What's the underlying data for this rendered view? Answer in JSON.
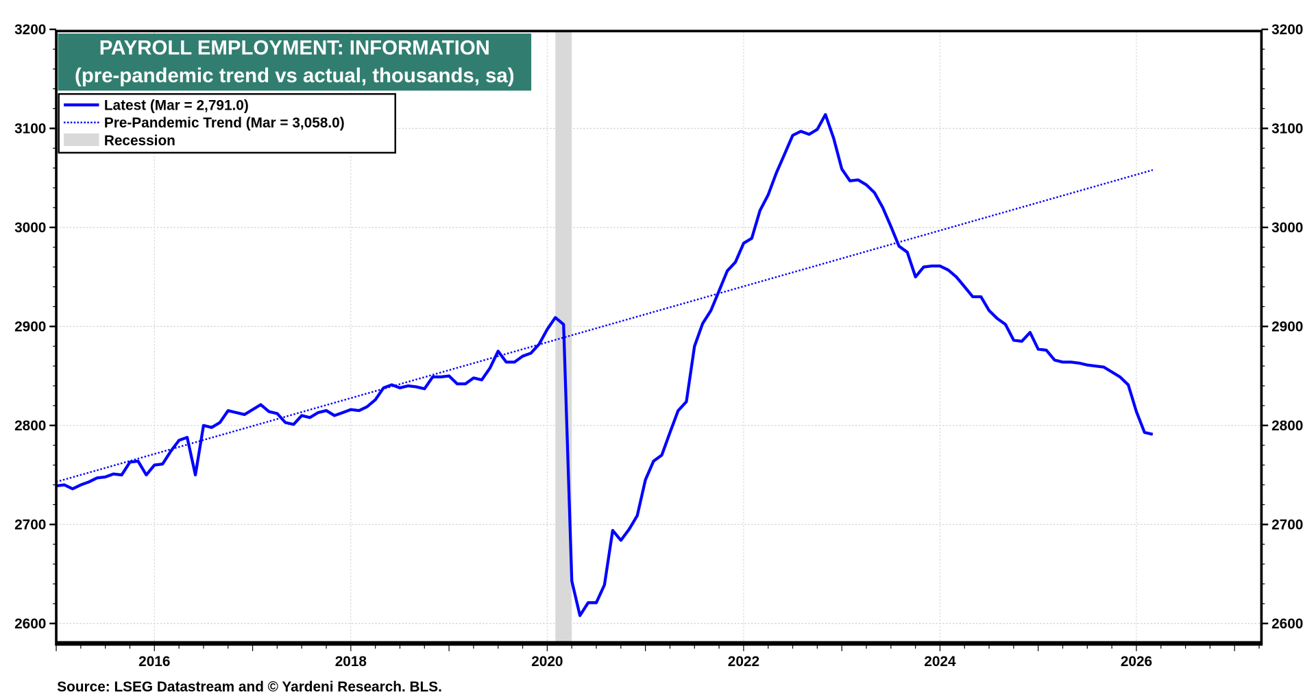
{
  "chart_data": {
    "type": "line",
    "title": "PAYROLL EMPLOYMENT: INFORMATION",
    "subtitle": "(pre-pandemic trend vs actual, thousands, sa)",
    "source": "Source: LSEG Datastream and © Yardeni Research. BLS.",
    "x_start": "2015-01",
    "x_frequency": "monthly",
    "xlim": [
      2015.0,
      2027.27
    ],
    "ylim": [
      2590,
      3200
    ],
    "y_ticks": [
      2600,
      2700,
      2800,
      2900,
      3000,
      3100,
      3200
    ],
    "x_tick_labels": [
      "2016",
      "2018",
      "2020",
      "2022",
      "2024",
      "2026"
    ],
    "grid": true,
    "y_axis_both_sides": true,
    "legend_placement": "top-left",
    "colors": {
      "title_bg": "#317E70",
      "series": "#0000FF",
      "recession": "#D9D9D9"
    },
    "legend": [
      {
        "label": "Latest (Mar = 2,791.0)",
        "style": "solid"
      },
      {
        "label": "Pre-Pandemic Trend (Mar = 3,058.0)",
        "style": "dotted"
      },
      {
        "label": "Recession",
        "style": "shade"
      }
    ],
    "recessions": [
      [
        "2020-02",
        "2020-04"
      ]
    ],
    "series": [
      {
        "name": "Latest",
        "values": [
          2739,
          2740,
          2736,
          2740,
          2743,
          2747,
          2748,
          2751,
          2750,
          2763,
          2764,
          2750,
          2760,
          2761,
          2774,
          2785,
          2788,
          2750,
          2800,
          2798,
          2803,
          2815,
          2813,
          2811,
          2816,
          2821,
          2814,
          2812,
          2803,
          2801,
          2810,
          2808,
          2813,
          2815,
          2810,
          2813,
          2816,
          2815,
          2819,
          2826,
          2838,
          2841,
          2838,
          2840,
          2839,
          2837,
          2849,
          2849,
          2850,
          2842,
          2842,
          2848,
          2846,
          2858,
          2875,
          2864,
          2864,
          2870,
          2873,
          2882,
          2897,
          2909,
          2902,
          2643,
          2608,
          2621,
          2621,
          2639,
          2694,
          2684,
          2695,
          2709,
          2745,
          2764,
          2770,
          2793,
          2815,
          2824,
          2880,
          2903,
          2916,
          2936,
          2956,
          2965,
          2984,
          2989,
          3017,
          3033,
          3055,
          3074,
          3093,
          3097,
          3094,
          3099,
          3114,
          3090,
          3059,
          3047,
          3048,
          3043,
          3035,
          3020,
          3001,
          2981,
          2975,
          2950,
          2960,
          2961,
          2961,
          2957,
          2950,
          2940,
          2930,
          2930,
          2916,
          2908,
          2902,
          2886,
          2885,
          2894,
          2877,
          2876,
          2866,
          2864,
          2864,
          2863,
          2861,
          2860,
          2859,
          2854,
          2849,
          2841,
          2814,
          2793,
          2791
        ]
      },
      {
        "name": "Pre-Pandemic Trend",
        "points": [
          [
            "2015-01",
            2743.0
          ],
          [
            "2026-03",
            3058.0
          ]
        ]
      }
    ]
  }
}
